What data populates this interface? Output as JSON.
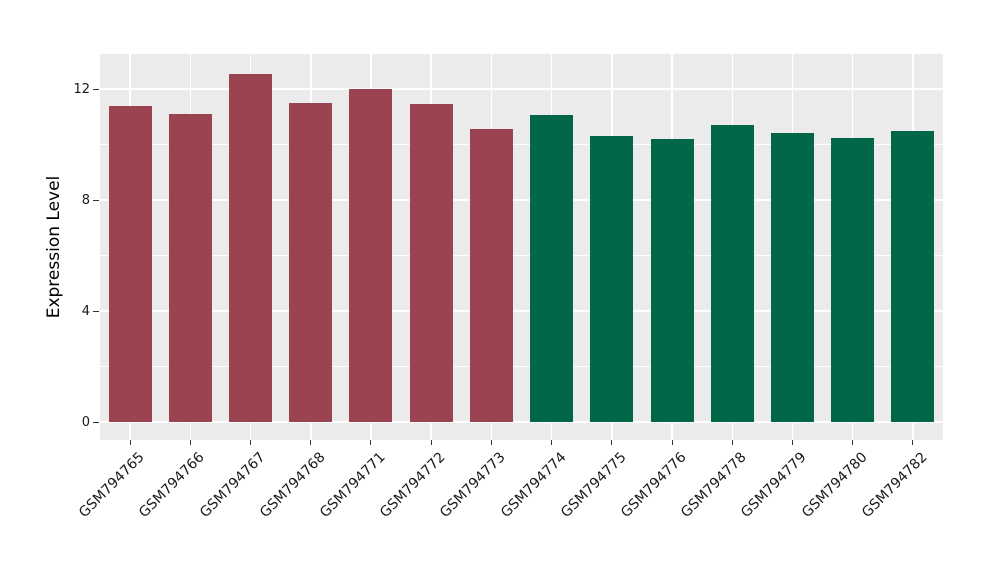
{
  "figure": {
    "background": "#ffffff",
    "panel_background": "#ebebeb",
    "gridline_color": "#ffffff",
    "tick_color": "#333333",
    "text_color": "#1a1a1a"
  },
  "chart_data": {
    "type": "bar",
    "title": "",
    "xlabel": "",
    "ylabel": "Expression Level",
    "categories": [
      "GSM794765",
      "GSM794766",
      "GSM794767",
      "GSM794768",
      "GSM794771",
      "GSM794772",
      "GSM794773",
      "GSM794774",
      "GSM794775",
      "GSM794776",
      "GSM794778",
      "GSM794779",
      "GSM794780",
      "GSM794782"
    ],
    "values": [
      11.4,
      11.1,
      12.55,
      11.5,
      12.0,
      11.45,
      10.55,
      11.05,
      10.3,
      10.2,
      10.7,
      10.4,
      10.25,
      10.5
    ],
    "groups": [
      "group1",
      "group1",
      "group1",
      "group1",
      "group1",
      "group1",
      "group1",
      "group2",
      "group2",
      "group2",
      "group2",
      "group2",
      "group2",
      "group2"
    ],
    "group_colors": {
      "group1": "#9c4352",
      "group2": "#016748"
    },
    "bar_colors": [
      "#9c4352",
      "#9c4352",
      "#9c4352",
      "#9c4352",
      "#9c4352",
      "#9c4352",
      "#9c4352",
      "#016748",
      "#016748",
      "#016748",
      "#016748",
      "#016748",
      "#016748",
      "#016748"
    ],
    "ylim": [
      0,
      13.3
    ],
    "yticks": [
      0,
      4,
      8,
      12
    ],
    "yticks_minor": [
      2,
      6,
      10
    ],
    "ytick_labels": [
      "0",
      "4",
      "8",
      "12"
    ],
    "grid": true,
    "legend": "none",
    "x_tick_rotation": 45
  }
}
